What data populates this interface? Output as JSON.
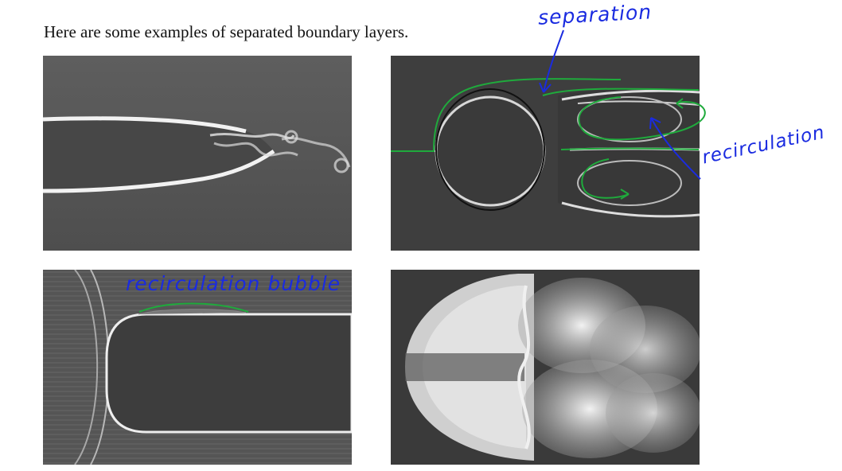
{
  "intro_text": "Here are some examples of separated boundary layers.",
  "annotations": {
    "separation": "separation",
    "recirculation": "recirculation",
    "recirculation_bubble": "recirculation bubble"
  },
  "colors": {
    "ink_blue": "#1a2be0",
    "marker_green": "#1faa3c",
    "photo_gray": "#5a5a5a"
  }
}
